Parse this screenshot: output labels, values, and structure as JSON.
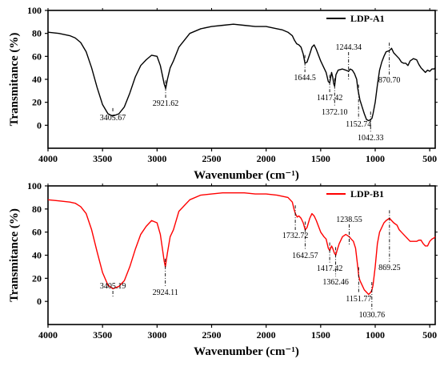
{
  "chart_data": [
    {
      "type": "line",
      "xlabel": "Wavenumber (cm⁻¹)",
      "ylabel": "Transmitance (%)",
      "xlim": [
        4000,
        450
      ],
      "ylim": [
        -20,
        100
      ],
      "x_reversed": true,
      "grid": false,
      "legend_position": "top-right",
      "xticks": [
        "4000",
        "3500",
        "3000",
        "2500",
        "2000",
        "1500",
        "1000",
        "500"
      ],
      "yticks": [
        "0",
        "20",
        "40",
        "60",
        "80",
        "100"
      ],
      "series": [
        {
          "name": "LDP-A1",
          "color": "#000000",
          "x": [
            4000,
            3900,
            3800,
            3750,
            3700,
            3650,
            3600,
            3550,
            3500,
            3450,
            3405,
            3350,
            3300,
            3250,
            3200,
            3150,
            3100,
            3050,
            3000,
            2970,
            2950,
            2935,
            2921,
            2905,
            2880,
            2850,
            2800,
            2700,
            2600,
            2500,
            2400,
            2300,
            2200,
            2100,
            2000,
            1900,
            1850,
            1800,
            1760,
            1740,
            1720,
            1700,
            1680,
            1660,
            1644,
            1625,
            1600,
            1580,
            1560,
            1540,
            1500,
            1470,
            1450,
            1430,
            1417,
            1400,
            1390,
            1380,
            1372,
            1360,
            1340,
            1300,
            1270,
            1244,
            1230,
            1210,
            1190,
            1170,
            1160,
            1152,
            1140,
            1120,
            1100,
            1080,
            1060,
            1042,
            1030,
            1020,
            1000,
            980,
            960,
            940,
            920,
            900,
            870,
            850,
            830,
            800,
            780,
            760,
            740,
            720,
            700,
            680,
            650,
            620,
            600,
            580,
            560,
            540,
            520,
            500,
            480,
            460,
            450
          ],
          "y": [
            81,
            80,
            78,
            76,
            72,
            64,
            50,
            33,
            18,
            10,
            8,
            10,
            16,
            28,
            42,
            52,
            57,
            61,
            60,
            52,
            43,
            36,
            32,
            40,
            50,
            56,
            68,
            80,
            84,
            86,
            87,
            88,
            87,
            86,
            86,
            84,
            83,
            81,
            78,
            74,
            71,
            70,
            68,
            62,
            54,
            55,
            62,
            68,
            70,
            66,
            56,
            50,
            46,
            38,
            37,
            46,
            42,
            36,
            34,
            44,
            48,
            49,
            48,
            47,
            49,
            48,
            45,
            40,
            32,
            28,
            22,
            16,
            10,
            5,
            4,
            5,
            6,
            10,
            20,
            35,
            48,
            55,
            60,
            64,
            65,
            67,
            63,
            60,
            58,
            55,
            54,
            54,
            52,
            56,
            58,
            57,
            53,
            50,
            48,
            46,
            48,
            47,
            49,
            49,
            50
          ]
        }
      ],
      "annotations": [
        {
          "x": 3405.67,
          "label": "3405.67"
        },
        {
          "x": 2921.62,
          "label": "2921.62"
        },
        {
          "x": 1644.5,
          "label": "1644.5"
        },
        {
          "x": 1417.42,
          "label": "1417.42"
        },
        {
          "x": 1372.1,
          "label": "1372.10"
        },
        {
          "x": 1244.34,
          "label": "1244.34"
        },
        {
          "x": 1152.74,
          "label": "1152.74"
        },
        {
          "x": 1042.33,
          "label": "1042.33"
        },
        {
          "x": 870.7,
          "label": "870.70"
        }
      ]
    },
    {
      "type": "line",
      "xlabel": "Wavenumber (cm⁻¹)",
      "ylabel": "Transmitance (%)",
      "xlim": [
        4000,
        450
      ],
      "ylim": [
        -20,
        100
      ],
      "x_reversed": true,
      "grid": false,
      "legend_position": "top-right",
      "xticks": [
        "4000",
        "3500",
        "3000",
        "2500",
        "2000",
        "1500",
        "1000",
        "500"
      ],
      "yticks": [
        "0",
        "20",
        "40",
        "60",
        "80",
        "100"
      ],
      "series": [
        {
          "name": "LDP-B1",
          "color": "#ff0000",
          "x": [
            4000,
            3900,
            3800,
            3750,
            3700,
            3650,
            3600,
            3550,
            3500,
            3450,
            3405,
            3350,
            3300,
            3250,
            3200,
            3150,
            3100,
            3050,
            3000,
            2970,
            2950,
            2935,
            2924,
            2905,
            2880,
            2860,
            2850,
            2800,
            2700,
            2600,
            2500,
            2400,
            2300,
            2200,
            2100,
            2000,
            1900,
            1800,
            1760,
            1745,
            1732,
            1715,
            1700,
            1680,
            1660,
            1642,
            1625,
            1600,
            1580,
            1560,
            1540,
            1500,
            1470,
            1450,
            1430,
            1417,
            1400,
            1390,
            1375,
            1362,
            1350,
            1330,
            1300,
            1270,
            1238,
            1220,
            1200,
            1180,
            1165,
            1151,
            1140,
            1120,
            1100,
            1080,
            1060,
            1040,
            1030,
            1020,
            1000,
            980,
            960,
            940,
            920,
            900,
            869,
            850,
            830,
            800,
            780,
            760,
            740,
            720,
            700,
            680,
            650,
            620,
            600,
            580,
            560,
            540,
            520,
            500,
            480,
            460,
            450
          ],
          "y": [
            88,
            87,
            86,
            85,
            82,
            76,
            62,
            43,
            25,
            14,
            11,
            13,
            18,
            30,
            45,
            58,
            65,
            70,
            68,
            58,
            45,
            35,
            30,
            42,
            56,
            60,
            62,
            78,
            88,
            92,
            93,
            94,
            94,
            94,
            93,
            93,
            92,
            90,
            86,
            80,
            76,
            73,
            74,
            72,
            68,
            62,
            64,
            72,
            76,
            74,
            70,
            60,
            56,
            54,
            46,
            44,
            48,
            46,
            42,
            40,
            44,
            50,
            56,
            58,
            56,
            54,
            52,
            46,
            34,
            22,
            18,
            14,
            10,
            8,
            6,
            8,
            10,
            14,
            30,
            50,
            60,
            64,
            68,
            70,
            72,
            70,
            68,
            66,
            62,
            60,
            58,
            56,
            54,
            52,
            52,
            52,
            53,
            53,
            50,
            48,
            48,
            52,
            54,
            55,
            56
          ]
        }
      ],
      "annotations": [
        {
          "x": 3405.19,
          "label": "3405.19"
        },
        {
          "x": 2924.11,
          "label": "2924.11"
        },
        {
          "x": 1732.72,
          "label": "1732.72"
        },
        {
          "x": 1642.57,
          "label": "1642.57"
        },
        {
          "x": 1417.42,
          "label": "1417.42"
        },
        {
          "x": 1362.46,
          "label": "1362.46"
        },
        {
          "x": 1238.55,
          "label": "1238.55"
        },
        {
          "x": 1151.77,
          "label": "1151.77"
        },
        {
          "x": 1030.76,
          "label": "1030.76"
        },
        {
          "x": 869.25,
          "label": "869.25"
        }
      ]
    }
  ]
}
